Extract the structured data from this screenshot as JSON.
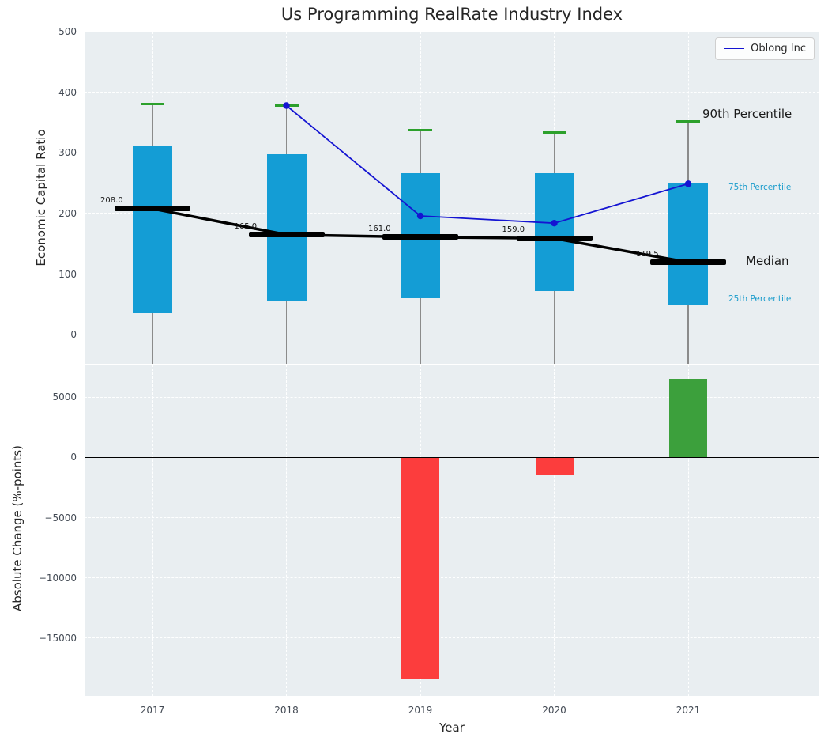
{
  "chart_data": [
    {
      "type": "box",
      "title": "Us Programming RealRate Industry Index",
      "ylabel": "Economic Capital Ratio",
      "xlabel": "Year",
      "ylim": [
        -48,
        500
      ],
      "yticks": [
        0,
        100,
        200,
        300,
        400,
        500
      ],
      "grid": true,
      "legend_label": "Oblong Inc",
      "legend_position": "upper right",
      "categories": [
        "2017",
        "2018",
        "2019",
        "2020",
        "2021"
      ],
      "series": [
        {
          "name": "25th Percentile",
          "values": [
            35,
            55,
            60,
            72,
            48
          ]
        },
        {
          "name": "Median",
          "values": [
            208.0,
            165.0,
            161.0,
            159.0,
            119.5
          ]
        },
        {
          "name": "75th Percentile",
          "values": [
            312,
            298,
            266,
            266,
            251
          ]
        },
        {
          "name": "90th Percentile",
          "values": [
            381,
            378,
            337,
            333,
            352
          ]
        },
        {
          "name": "Oblong Inc",
          "values": [
            null,
            378,
            196,
            184,
            249
          ]
        }
      ],
      "median_labels": [
        "208.0",
        "165.0",
        "161.0",
        "159.0",
        "119.5"
      ],
      "annotations": {
        "p90": "90th Percentile",
        "p75": "75th Percentile",
        "median": "Median",
        "p25": "25th Percentile"
      },
      "colors": {
        "box": "#149dd5",
        "cap": "#2ca02c",
        "median_line": "#000000",
        "company_line": "#1414d2",
        "whisker": "#8b8b8b",
        "annotation_teal": "#1b9ccc"
      }
    },
    {
      "type": "bar",
      "ylabel": "Absolute Change (%-points)",
      "xlabel": "Year",
      "ylim": [
        -19800,
        7700
      ],
      "yticks": [
        5000,
        0,
        -5000,
        -10000,
        -15000
      ],
      "grid": true,
      "categories": [
        "2017",
        "2018",
        "2019",
        "2020",
        "2021"
      ],
      "values": [
        0,
        0,
        -18400,
        -1400,
        6500
      ],
      "colors": {
        "positive": "#3ca03c",
        "negative": "#fc3d3d"
      }
    }
  ]
}
